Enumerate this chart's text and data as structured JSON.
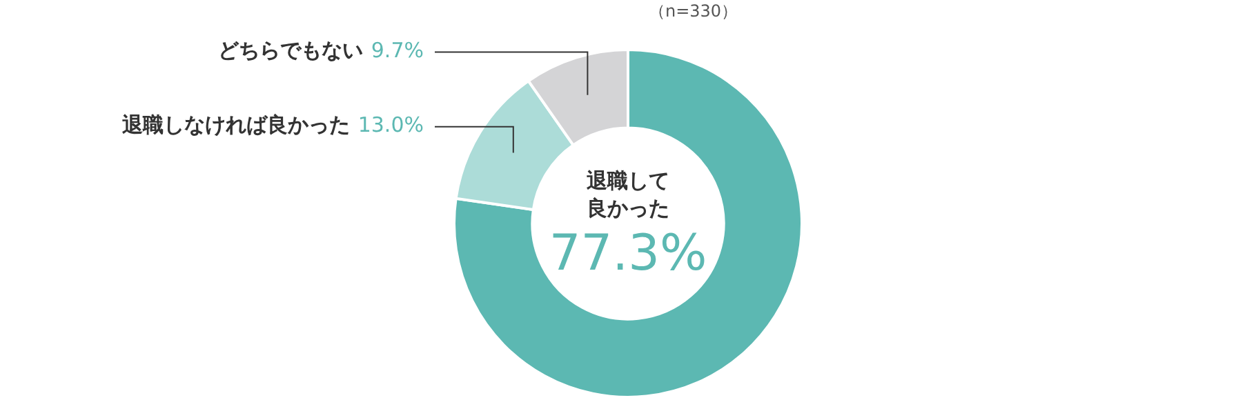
{
  "chart_data": {
    "type": "donut",
    "categories": [
      "退職して良かった",
      "退職しなければ良かった",
      "どちらでもない"
    ],
    "values": [
      77.3,
      13.0,
      9.7
    ],
    "colors": [
      "#5cb8b2",
      "#acdcd8",
      "#d4d4d6"
    ],
    "value_labels": [
      "77.3%",
      "13.0%",
      "9.7%"
    ],
    "annotations": [
      "（n=330）"
    ]
  }
}
